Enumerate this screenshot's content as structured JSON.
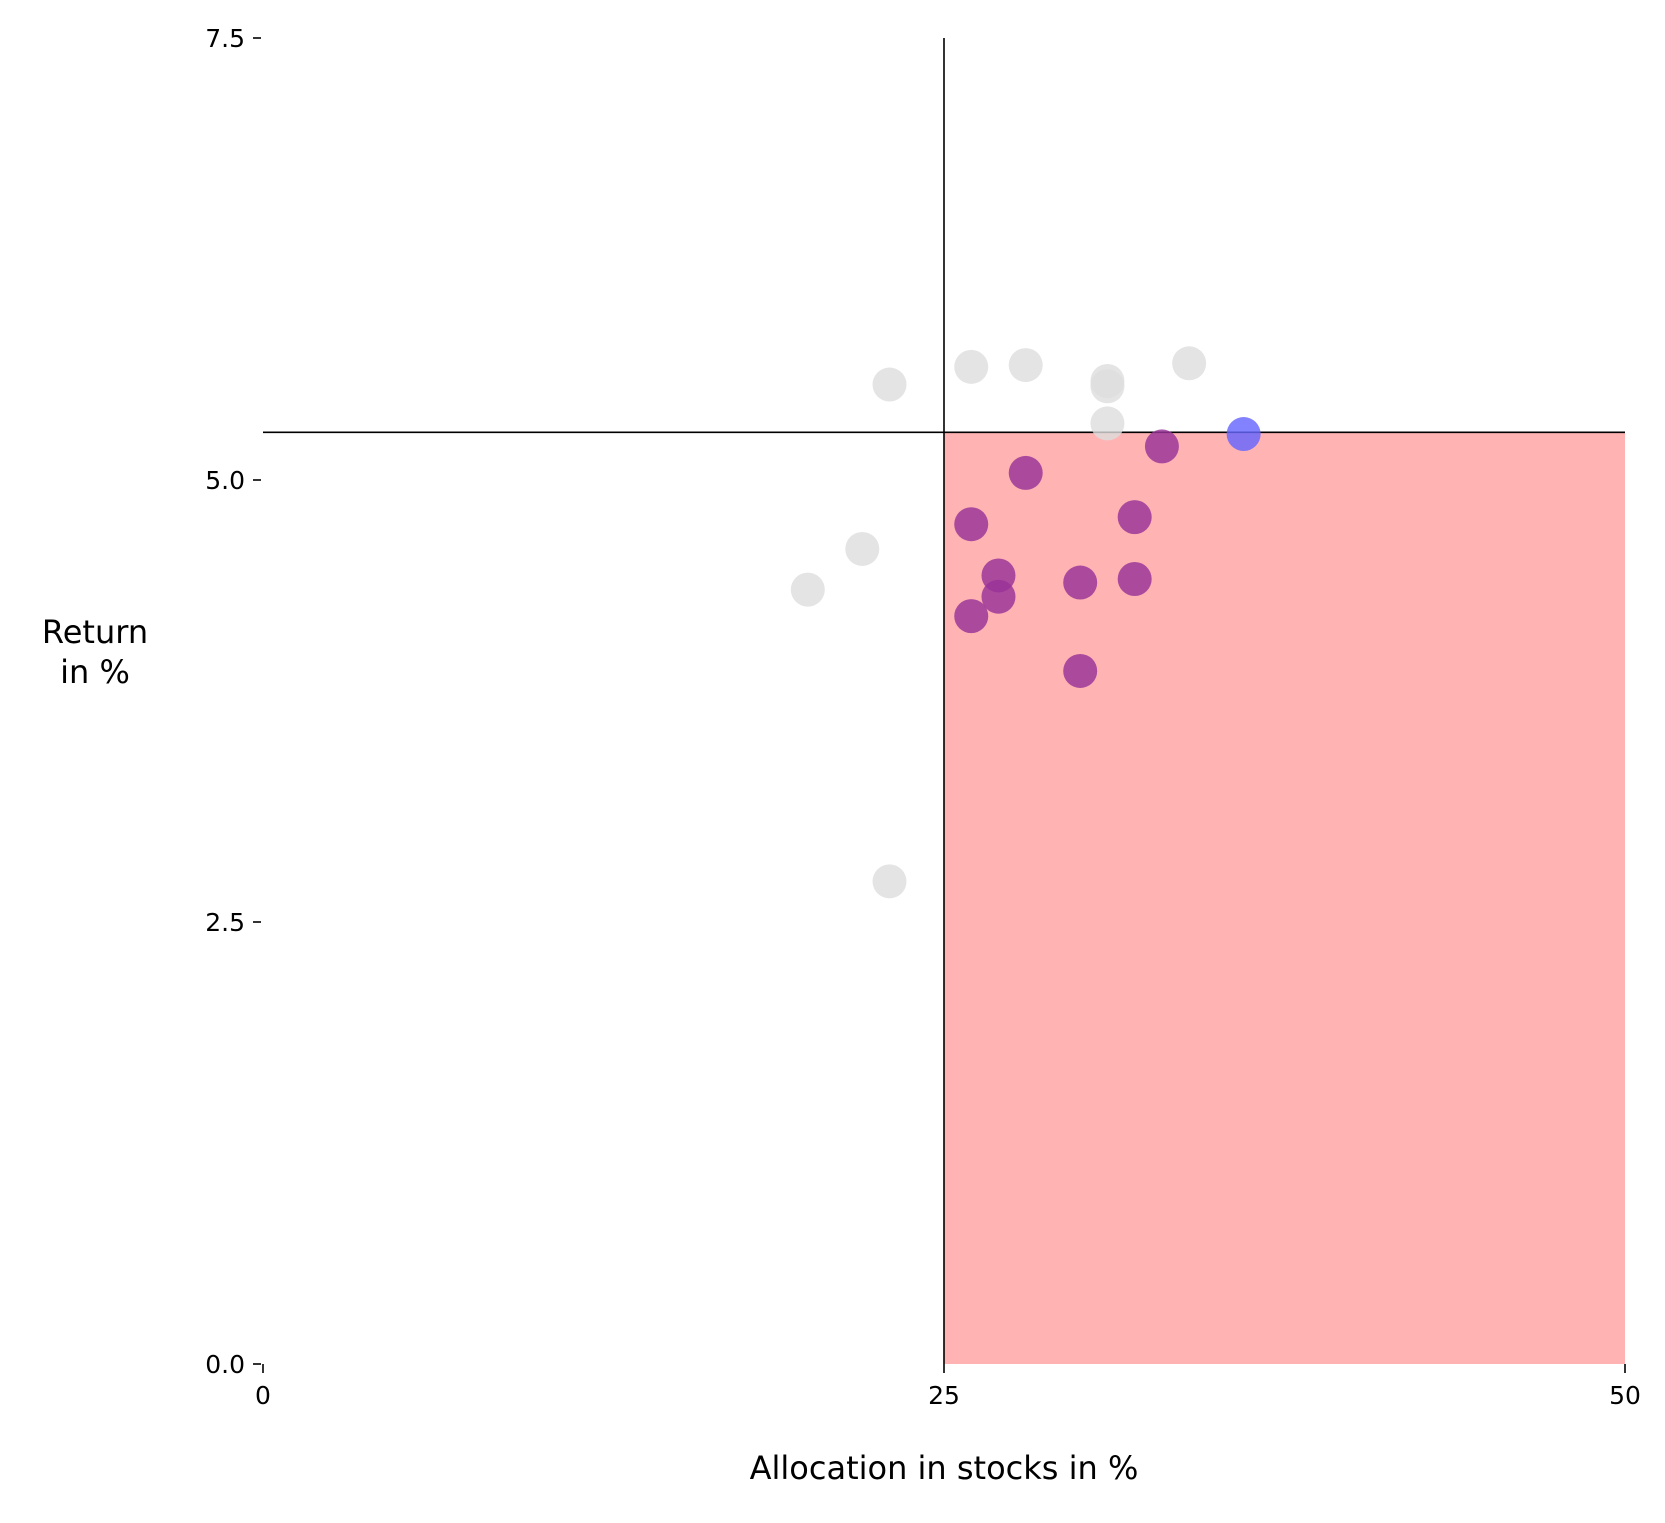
{
  "chart_data": {
    "type": "scatter",
    "title": "",
    "xlabel": "Allocation in stocks in %",
    "ylabel_lines": [
      "Return",
      "in %"
    ],
    "xlim": [
      0,
      50
    ],
    "ylim": [
      0,
      7.5
    ],
    "x_ticks": [
      0,
      25,
      50
    ],
    "y_ticks": [
      0.0,
      2.5,
      5.0,
      7.5
    ],
    "x_tick_labels": [
      "0",
      "25",
      "50"
    ],
    "y_tick_labels": [
      "0.0",
      "2.5",
      "5.0",
      "7.5"
    ],
    "grid": false,
    "reference_lines": {
      "x": 25,
      "y": 5.27
    },
    "highlight_region": {
      "x": [
        25,
        50
      ],
      "y": [
        0,
        5.27
      ],
      "color": "#ffb3b3"
    },
    "series": [
      {
        "color": "#dddddd",
        "points": [
          {
            "x": 23,
            "y": 5.54
          },
          {
            "x": 26,
            "y": 5.64
          },
          {
            "x": 28,
            "y": 5.65
          },
          {
            "x": 31,
            "y": 5.56
          },
          {
            "x": 31,
            "y": 5.53
          },
          {
            "x": 34,
            "y": 5.66
          },
          {
            "x": 31,
            "y": 5.32
          },
          {
            "x": 22,
            "y": 4.61
          },
          {
            "x": 20,
            "y": 4.38
          },
          {
            "x": 23,
            "y": 2.73
          }
        ]
      },
      {
        "color": "#993399",
        "points": [
          {
            "x": 33,
            "y": 5.19
          },
          {
            "x": 28,
            "y": 5.04
          },
          {
            "x": 26,
            "y": 4.75
          },
          {
            "x": 32,
            "y": 4.79
          },
          {
            "x": 27,
            "y": 4.46
          },
          {
            "x": 27,
            "y": 4.34
          },
          {
            "x": 30,
            "y": 4.42
          },
          {
            "x": 32,
            "y": 4.44
          },
          {
            "x": 26,
            "y": 4.23
          },
          {
            "x": 30,
            "y": 3.92
          }
        ]
      },
      {
        "color": "#6666ff",
        "points": [
          {
            "x": 36,
            "y": 5.26
          }
        ]
      }
    ]
  }
}
